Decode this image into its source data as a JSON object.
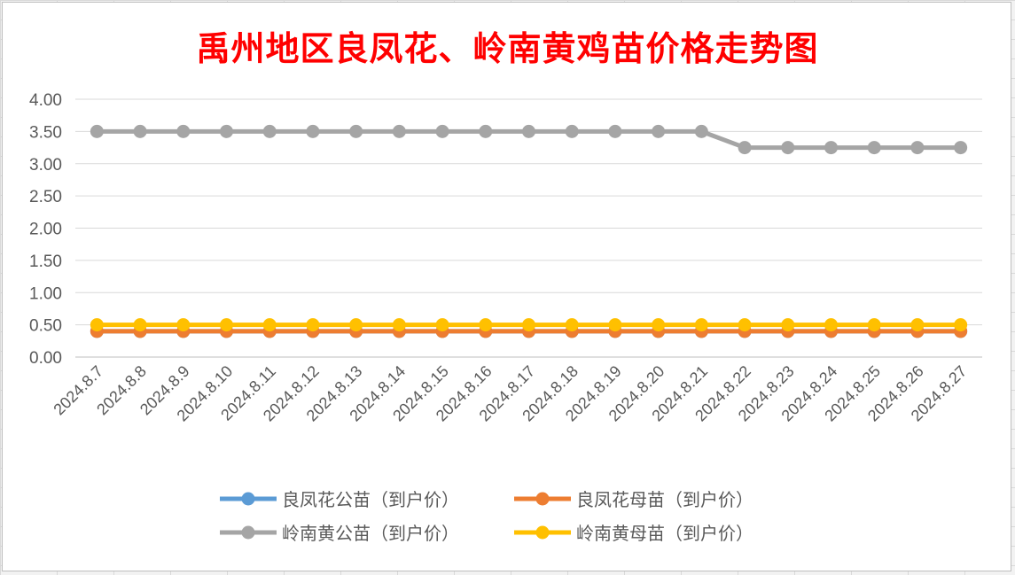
{
  "chart_data": {
    "type": "line",
    "title": "禹州地区良凤花、岭南黄鸡苗价格走势图",
    "xlabel": "",
    "ylabel": "",
    "ylim": [
      0,
      4
    ],
    "ystep": 0.5,
    "ytick_labels": [
      "0.00",
      "0.50",
      "1.00",
      "1.50",
      "2.00",
      "2.50",
      "3.00",
      "3.50",
      "4.00"
    ],
    "grid": true,
    "legend_position": "bottom",
    "categories": [
      "2024.8.7",
      "2024.8.8",
      "2024.8.9",
      "2024.8.10",
      "2024.8.11",
      "2024.8.12",
      "2024.8.13",
      "2024.8.14",
      "2024.8.15",
      "2024.8.16",
      "2024.8.17",
      "2024.8.18",
      "2024.8.19",
      "2024.8.20",
      "2024.8.21",
      "2024.8.22",
      "2024.8.23",
      "2024.8.24",
      "2024.8.25",
      "2024.8.26",
      "2024.8.27"
    ],
    "series": [
      {
        "name": "良凤花公苗（到户价）",
        "color": "#5b9bd5",
        "values": [
          0.4,
          0.4,
          0.4,
          0.4,
          0.4,
          0.4,
          0.4,
          0.4,
          0.4,
          0.4,
          0.4,
          0.4,
          0.4,
          0.4,
          0.4,
          0.4,
          0.4,
          0.4,
          0.4,
          0.4,
          0.4
        ]
      },
      {
        "name": "良凤花母苗（到户价）",
        "color": "#ed7d31",
        "values": [
          0.4,
          0.4,
          0.4,
          0.4,
          0.4,
          0.4,
          0.4,
          0.4,
          0.4,
          0.4,
          0.4,
          0.4,
          0.4,
          0.4,
          0.4,
          0.4,
          0.4,
          0.4,
          0.4,
          0.4,
          0.4
        ]
      },
      {
        "name": "岭南黄公苗（到户价）",
        "color": "#a5a5a5",
        "values": [
          3.5,
          3.5,
          3.5,
          3.5,
          3.5,
          3.5,
          3.5,
          3.5,
          3.5,
          3.5,
          3.5,
          3.5,
          3.5,
          3.5,
          3.5,
          3.25,
          3.25,
          3.25,
          3.25,
          3.25,
          3.25
        ]
      },
      {
        "name": "岭南黄母苗（到户价）",
        "color": "#ffc000",
        "values": [
          0.5,
          0.5,
          0.5,
          0.5,
          0.5,
          0.5,
          0.5,
          0.5,
          0.5,
          0.5,
          0.5,
          0.5,
          0.5,
          0.5,
          0.5,
          0.5,
          0.5,
          0.5,
          0.5,
          0.5,
          0.5
        ]
      }
    ]
  }
}
